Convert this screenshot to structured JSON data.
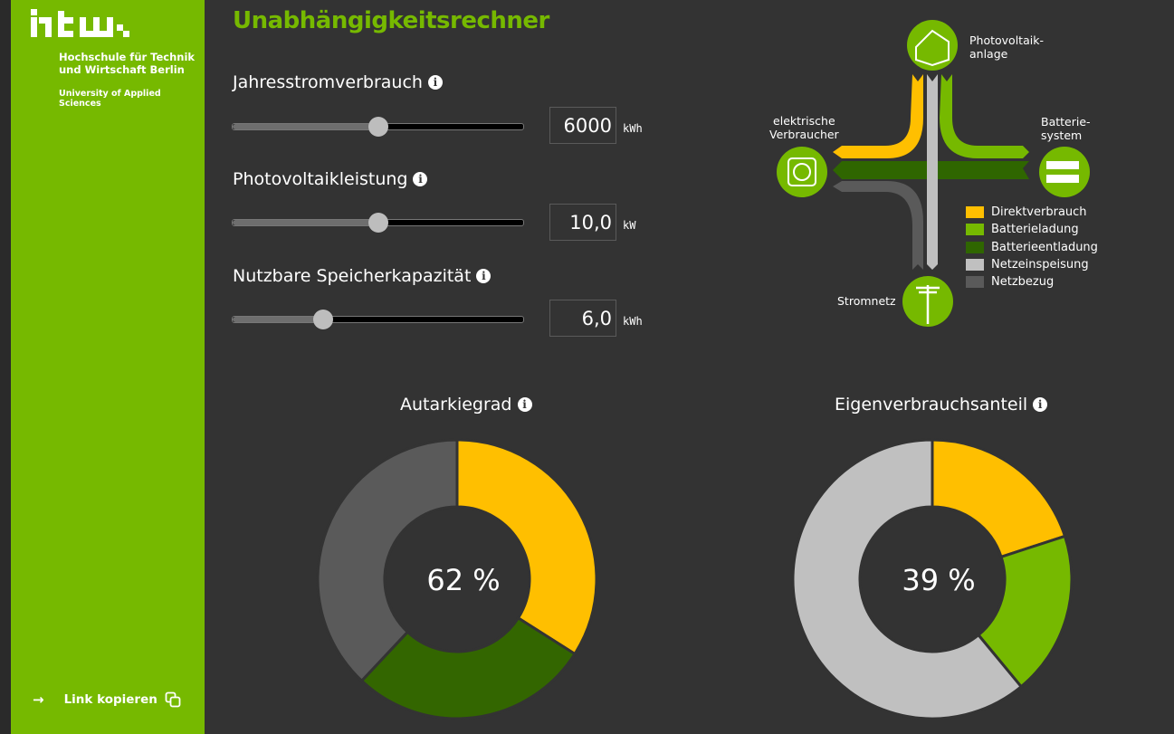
{
  "sidebar": {
    "logo_text": "htw.",
    "university_name_line1": "Hochschule für Technik",
    "university_name_line2": "und Wirtschaft Berlin",
    "university_subtitle": "University of Applied Sciences",
    "copy_link_label": "Link kopieren",
    "brand_color": "#76b900"
  },
  "title": "Unabhängigkeitsrechner",
  "controls": [
    {
      "label": "Jahresstromverbrauch",
      "value": "6000",
      "unit": "kWh",
      "slider_fraction": 0.5
    },
    {
      "label": "Photovoltaikleistung",
      "value": "10,0",
      "unit": "kW",
      "slider_fraction": 0.5
    },
    {
      "label": "Nutzbare Speicherkapazität",
      "value": "6,0",
      "unit": "kWh",
      "slider_fraction": 0.31
    }
  ],
  "diagram": {
    "pv": "Photovoltaik-\nanlage",
    "consumers": "elektrische\nVerbraucher",
    "battery": "Batterie-\nsystem",
    "grid": "Stromnetz",
    "legend": [
      {
        "label": "Direktverbrauch",
        "color": "#ffbf00"
      },
      {
        "label": "Batterieladung",
        "color": "#76b900"
      },
      {
        "label": "Batterieentladung",
        "color": "#2f6600"
      },
      {
        "label": "Netzeinspeisung",
        "color": "#c0c0c0"
      },
      {
        "label": "Netzbezug",
        "color": "#5a5a5a"
      }
    ]
  },
  "chart_data": [
    {
      "type": "pie",
      "title": "Autarkiegrad",
      "center_label": "62 %",
      "slices": [
        {
          "name": "Direktverbrauch",
          "value": 34,
          "color": "#ffbf00"
        },
        {
          "name": "Batterieentladung",
          "value": 28,
          "color": "#336600"
        },
        {
          "name": "Netzbezug",
          "value": 38,
          "color": "#5a5a5a"
        }
      ]
    },
    {
      "type": "pie",
      "title": "Eigenverbrauchsanteil",
      "center_label": "39 %",
      "slices": [
        {
          "name": "Direktverbrauch",
          "value": 20,
          "color": "#ffbf00"
        },
        {
          "name": "Batterieladung",
          "value": 19,
          "color": "#76b900"
        },
        {
          "name": "Netzeinspeisung",
          "value": 61,
          "color": "#c0c0c0"
        }
      ]
    }
  ]
}
